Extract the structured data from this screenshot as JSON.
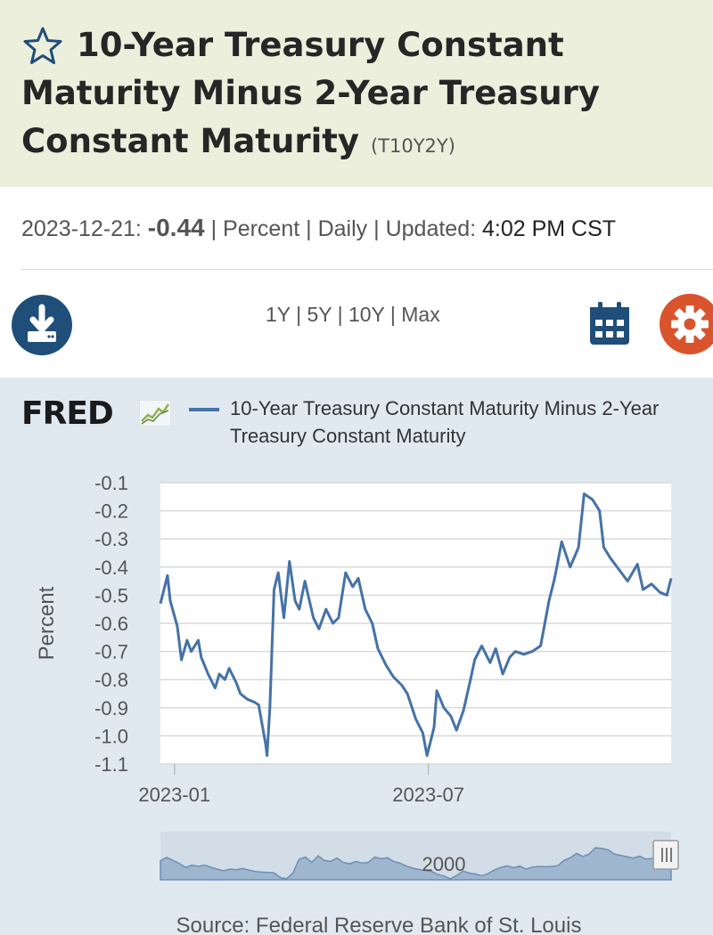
{
  "header": {
    "title": "10-Year Treasury Constant Maturity Minus 2-Year Treasury Constant Maturity",
    "series_id": "(T10Y2Y)"
  },
  "meta": {
    "date": "2023-12-21:",
    "value": "-0.44",
    "sep1": "|",
    "units": "Percent",
    "sep2": "|",
    "frequency": "Daily",
    "sep3": "|",
    "updated_label": "Updated:",
    "updated_time": "4:02 PM CST"
  },
  "toolbar": {
    "ranges": [
      "1Y",
      "5Y",
      "10Y",
      "Max"
    ],
    "separator": "|",
    "download_icon": "download-icon",
    "calendar_icon": "calendar-icon",
    "settings_icon": "gear-icon"
  },
  "legend": {
    "logo": "FRED",
    "series_label": "10-Year Treasury Constant Maturity Minus 2-Year Treasury Constant Maturity"
  },
  "colors": {
    "series": "#4572a7",
    "header_bg": "#ecefdc",
    "panel_bg": "#e1e9f0",
    "download_btn": "#1f4e79",
    "calendar": "#1f4e79",
    "settings": "#d9532c"
  },
  "chart_data": {
    "type": "line",
    "title": "",
    "xlabel": "",
    "ylabel": "Percent",
    "ylim": [
      -1.1,
      -0.1
    ],
    "yticks": [
      "-0.1",
      "-0.2",
      "-0.3",
      "-0.4",
      "-0.5",
      "-0.6",
      "-0.7",
      "-0.8",
      "-0.9",
      "-1.0",
      "-1.1"
    ],
    "xticks": [
      "2023-01",
      "2023-07"
    ],
    "navigator_label": "2000",
    "source": "Source: Federal Reserve Bank of St. Louis",
    "series": [
      {
        "name": "10-Year Treasury Constant Maturity Minus 2-Year Treasury Constant Maturity",
        "x": [
          "2022-12-22",
          "2022-12-27",
          "2022-12-29",
          "2023-01-03",
          "2023-01-06",
          "2023-01-10",
          "2023-01-13",
          "2023-01-18",
          "2023-01-20",
          "2023-01-25",
          "2023-01-30",
          "2023-02-02",
          "2023-02-06",
          "2023-02-09",
          "2023-02-14",
          "2023-02-17",
          "2023-02-22",
          "2023-02-27",
          "2023-03-02",
          "2023-03-07",
          "2023-03-08",
          "2023-03-10",
          "2023-03-13",
          "2023-03-16",
          "2023-03-20",
          "2023-03-24",
          "2023-03-28",
          "2023-03-31",
          "2023-04-04",
          "2023-04-10",
          "2023-04-14",
          "2023-04-19",
          "2023-04-24",
          "2023-04-28",
          "2023-05-03",
          "2023-05-08",
          "2023-05-12",
          "2023-05-17",
          "2023-05-22",
          "2023-05-26",
          "2023-06-01",
          "2023-06-06",
          "2023-06-12",
          "2023-06-16",
          "2023-06-22",
          "2023-06-27",
          "2023-06-30",
          "2023-07-05",
          "2023-07-07",
          "2023-07-12",
          "2023-07-17",
          "2023-07-21",
          "2023-07-26",
          "2023-07-31",
          "2023-08-03",
          "2023-08-08",
          "2023-08-14",
          "2023-08-18",
          "2023-08-23",
          "2023-08-28",
          "2023-09-01",
          "2023-09-07",
          "2023-09-13",
          "2023-09-19",
          "2023-09-25",
          "2023-09-29",
          "2023-10-04",
          "2023-10-10",
          "2023-10-16",
          "2023-10-20",
          "2023-10-26",
          "2023-10-31",
          "2023-11-03",
          "2023-11-08",
          "2023-11-14",
          "2023-11-20",
          "2023-11-27",
          "2023-12-01",
          "2023-12-07",
          "2023-12-13",
          "2023-12-18",
          "2023-12-21"
        ],
        "values": [
          -0.53,
          -0.43,
          -0.52,
          -0.61,
          -0.73,
          -0.66,
          -0.7,
          -0.66,
          -0.72,
          -0.78,
          -0.83,
          -0.78,
          -0.8,
          -0.76,
          -0.81,
          -0.85,
          -0.87,
          -0.88,
          -0.89,
          -1.03,
          -1.07,
          -0.9,
          -0.48,
          -0.42,
          -0.58,
          -0.38,
          -0.52,
          -0.55,
          -0.45,
          -0.58,
          -0.62,
          -0.55,
          -0.6,
          -0.58,
          -0.42,
          -0.47,
          -0.44,
          -0.55,
          -0.6,
          -0.69,
          -0.75,
          -0.79,
          -0.82,
          -0.85,
          -0.94,
          -0.99,
          -1.07,
          -0.97,
          -0.84,
          -0.9,
          -0.93,
          -0.98,
          -0.91,
          -0.8,
          -0.73,
          -0.68,
          -0.74,
          -0.69,
          -0.78,
          -0.72,
          -0.7,
          -0.71,
          -0.7,
          -0.68,
          -0.52,
          -0.44,
          -0.31,
          -0.4,
          -0.33,
          -0.14,
          -0.16,
          -0.2,
          -0.33,
          -0.37,
          -0.41,
          -0.45,
          -0.39,
          -0.48,
          -0.46,
          -0.49,
          -0.5,
          -0.44
        ]
      }
    ]
  }
}
